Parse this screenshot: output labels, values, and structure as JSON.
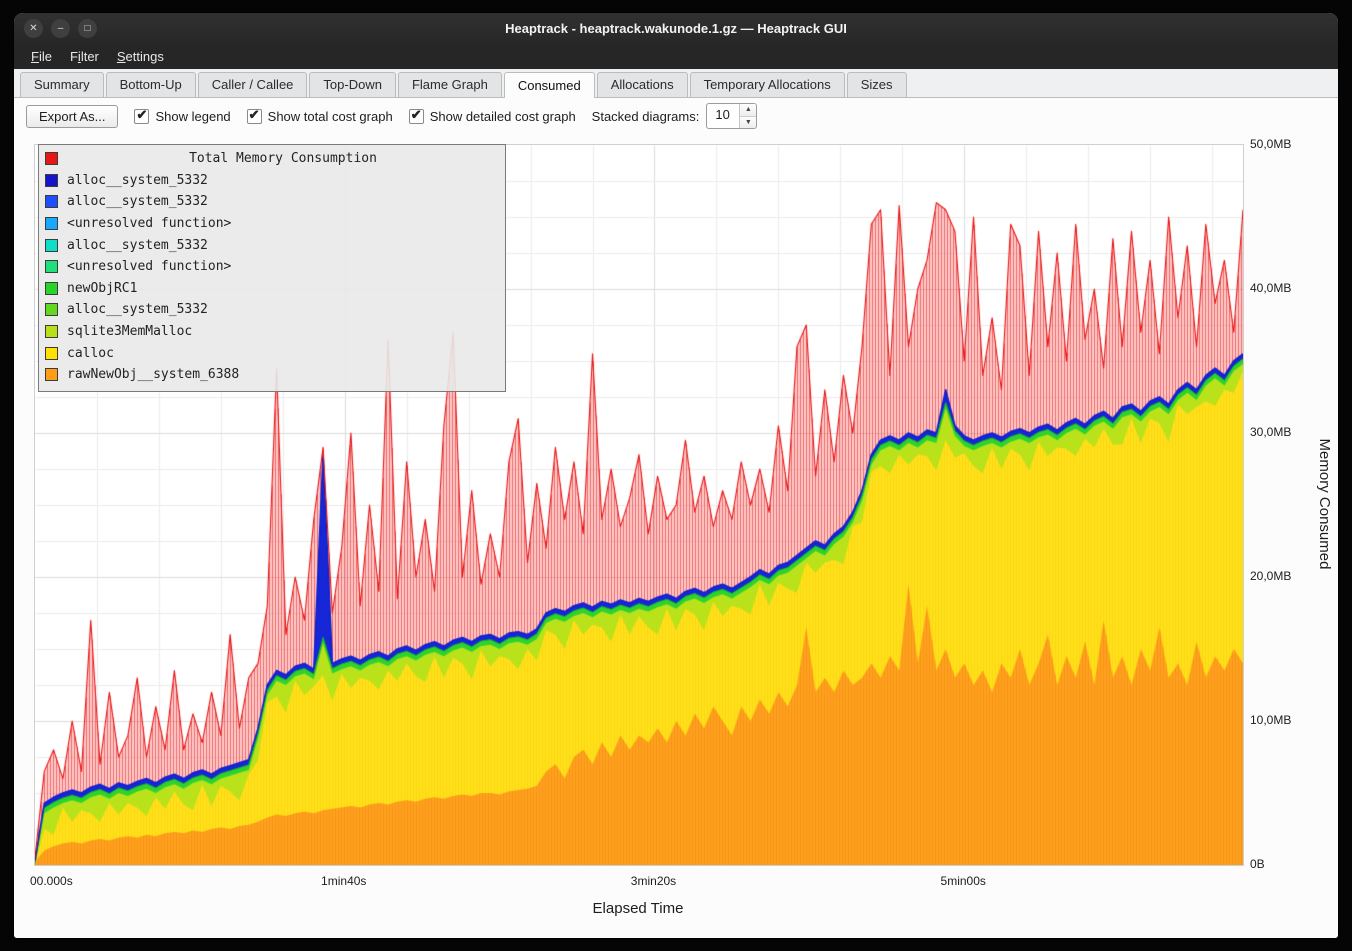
{
  "window": {
    "title": "Heaptrack - heaptrack.wakunode.1.gz — Heaptrack GUI",
    "controls": [
      {
        "name": "close",
        "glyph": "✕"
      },
      {
        "name": "minimize",
        "glyph": "–"
      },
      {
        "name": "maximize",
        "glyph": "□"
      }
    ]
  },
  "menu": {
    "items": [
      {
        "label": "File",
        "accel": 0
      },
      {
        "label": "Filter",
        "accel": 1
      },
      {
        "label": "Settings",
        "accel": 0
      }
    ]
  },
  "tabs": {
    "active_index": 5,
    "items": [
      "Summary",
      "Bottom-Up",
      "Caller / Callee",
      "Top-Down",
      "Flame Graph",
      "Consumed",
      "Allocations",
      "Temporary Allocations",
      "Sizes"
    ]
  },
  "toolbar": {
    "export_label": "Export As...",
    "checkboxes": [
      {
        "label": "Show legend",
        "checked": true
      },
      {
        "label": "Show total cost graph",
        "checked": true
      },
      {
        "label": "Show detailed cost graph",
        "checked": true
      }
    ],
    "stacked_label": "Stacked diagrams:",
    "stacked_value": "10"
  },
  "legend": {
    "title": "Total Memory Consumption",
    "title_color": "#e81717",
    "items": [
      {
        "label": "alloc__system_5332",
        "color": "#1414cc"
      },
      {
        "label": "alloc__system_5332",
        "color": "#1e4fff"
      },
      {
        "label": "<unresolved function>",
        "color": "#18a8ff"
      },
      {
        "label": "alloc__system_5332",
        "color": "#10dfc8"
      },
      {
        "label": "<unresolved function>",
        "color": "#1fe07a"
      },
      {
        "label": "newObjRC1",
        "color": "#28d428"
      },
      {
        "label": "alloc__system_5332",
        "color": "#63d81e"
      },
      {
        "label": "sqlite3MemMalloc",
        "color": "#b8e018"
      },
      {
        "label": "calloc",
        "color": "#ffe000"
      },
      {
        "label": "rawNewObj__system_6388",
        "color": "#ff9e16"
      }
    ]
  },
  "chart_data": {
    "type": "area",
    "stacked": true,
    "title": "Total Memory Consumption",
    "xlabel": "Elapsed Time",
    "ylabel": "Memory Consumed",
    "x_start_s": 0,
    "x_step_s": 3,
    "x_end_s": 390,
    "ylim_mb": [
      0,
      50
    ],
    "x_ticks": [
      {
        "t": 0,
        "label": "00.000s"
      },
      {
        "t": 100,
        "label": "1min40s"
      },
      {
        "t": 200,
        "label": "3min20s"
      },
      {
        "t": 300,
        "label": "5min00s"
      }
    ],
    "y_ticks": [
      {
        "mb": 0,
        "label": "0B"
      },
      {
        "mb": 10,
        "label": "10,0MB"
      },
      {
        "mb": 20,
        "label": "20,0MB"
      },
      {
        "mb": 30,
        "label": "30,0MB"
      },
      {
        "mb": 40,
        "label": "40,0MB"
      },
      {
        "mb": 50,
        "label": "50,0MB"
      }
    ],
    "grid": {
      "x_step_s": 20,
      "y_step_mb": 2.5,
      "minor_color": "#ececec",
      "major_color": "#dcdcdc"
    },
    "colors": {
      "total_fill": "rgba(255,70,70,0.28)",
      "total_hatch": "rgba(226,26,26,0.55)",
      "total_line": "#e81414",
      "blue": "#1627d8",
      "blue_line": "#1322cc",
      "green": "#2ed32e",
      "green_line": "#1db81d",
      "sqlite": "#b9e21b",
      "yellow": "#ffe01a",
      "yellow_hatch": "rgba(230,185,0,0.22)",
      "orange": "#ffa11e",
      "orange_hatch": "rgba(228,124,8,0.35)"
    },
    "derived_bands": {
      "green_offset_below_blue": 0.35,
      "sqlite_offset_below_blue": 0.7,
      "green_cap_above_yellow": 2.6,
      "sqlite_cap_above_yellow": 2.2
    },
    "series": {
      "total_top_mb": [
        0.5,
        6.5,
        8.0,
        6.0,
        10.0,
        6.5,
        17.0,
        7.0,
        12.0,
        7.5,
        9.0,
        13.0,
        7.5,
        11.0,
        8.0,
        13.5,
        8.0,
        10.5,
        8.5,
        12.0,
        9.0,
        16.0,
        9.5,
        13.0,
        14.0,
        18.0,
        34.5,
        16.0,
        20.0,
        17.0,
        24.0,
        29.0,
        17.5,
        22.0,
        30.0,
        18.0,
        25.0,
        19.0,
        36.5,
        18.5,
        28.0,
        20.0,
        24.0,
        19.0,
        30.5,
        37.0,
        20.0,
        26.0,
        19.5,
        23.0,
        20.0,
        28.0,
        31.0,
        21.0,
        26.5,
        22.0,
        29.0,
        24.0,
        28.0,
        23.0,
        35.5,
        24.0,
        27.5,
        23.5,
        25.5,
        28.5,
        23.0,
        27.0,
        24.0,
        25.0,
        29.5,
        24.5,
        27.0,
        23.5,
        26.0,
        24.0,
        28.0,
        25.0,
        27.5,
        24.5,
        30.5,
        26.0,
        36.0,
        37.5,
        27.0,
        33.0,
        28.0,
        34.0,
        30.0,
        36.0,
        44.5,
        45.5,
        34.0,
        45.8,
        36.0,
        40.0,
        42.0,
        46.0,
        45.5,
        44.0,
        35.0,
        45.0,
        34.0,
        38.0,
        33.0,
        44.5,
        43.0,
        34.0,
        44.0,
        36.0,
        42.5,
        35.0,
        44.5,
        36.5,
        40.0,
        34.5,
        43.5,
        36.0,
        44.0,
        37.0,
        42.0,
        35.5,
        45.0,
        38.0,
        43.0,
        36.0,
        44.5,
        39.0,
        42.0,
        37.0,
        45.5
      ],
      "blue_top_mb": [
        0.3,
        4.3,
        4.7,
        5.0,
        5.2,
        5.0,
        5.4,
        5.6,
        5.3,
        5.7,
        5.5,
        5.8,
        6.0,
        5.7,
        6.1,
        6.3,
        6.0,
        6.4,
        6.6,
        6.3,
        6.7,
        6.9,
        7.1,
        7.3,
        9.5,
        12.5,
        13.5,
        13.2,
        13.8,
        14.0,
        13.6,
        28.5,
        14.0,
        14.3,
        14.5,
        14.2,
        14.6,
        14.8,
        14.5,
        15.0,
        15.2,
        14.9,
        15.3,
        15.5,
        15.2,
        15.6,
        15.8,
        15.5,
        15.9,
        16.0,
        15.7,
        16.1,
        16.2,
        16.0,
        16.4,
        17.5,
        17.8,
        17.6,
        18.0,
        18.2,
        17.9,
        18.3,
        18.1,
        18.4,
        18.2,
        18.5,
        18.3,
        18.6,
        18.8,
        18.5,
        19.0,
        19.2,
        18.9,
        19.3,
        19.5,
        19.2,
        19.6,
        20.0,
        20.5,
        20.2,
        20.8,
        21.0,
        21.5,
        22.0,
        22.5,
        22.2,
        23.0,
        23.5,
        24.5,
        26.0,
        28.5,
        29.5,
        29.8,
        29.5,
        30.0,
        29.7,
        30.2,
        30.0,
        33.0,
        30.5,
        29.8,
        29.5,
        29.8,
        30.0,
        29.7,
        30.1,
        30.3,
        30.0,
        30.4,
        30.6,
        30.2,
        30.7,
        31.0,
        30.6,
        31.2,
        31.5,
        31.0,
        31.8,
        32.0,
        31.5,
        32.2,
        32.5,
        32.0,
        33.0,
        33.5,
        33.0,
        34.0,
        34.5,
        34.0,
        35.0,
        35.5
      ],
      "yellow_top_mb": [
        0.1,
        2.5,
        2.1,
        4.0,
        3.0,
        3.8,
        3.6,
        3.0,
        4.3,
        3.5,
        4.3,
        4.0,
        3.4,
        4.7,
        3.9,
        5.1,
        4.2,
        3.8,
        5.6,
        4.1,
        5.5,
        5.1,
        4.5,
        6.3,
        7.3,
        11.3,
        11.7,
        10.6,
        12.8,
        11.8,
        12.4,
        13.2,
        11.4,
        13.3,
        12.3,
        13.0,
        12.8,
        12.2,
        13.5,
        12.8,
        14.0,
        13.1,
        12.7,
        14.5,
        13.0,
        14.4,
        14.0,
        12.9,
        14.9,
        13.8,
        14.5,
        14.3,
        13.6,
        15.0,
        14.2,
        16.3,
        16.0,
        15.0,
        17.0,
        16.0,
        16.7,
        16.5,
        15.5,
        17.4,
        16.0,
        17.3,
        16.5,
        16.0,
        17.8,
        16.3,
        17.8,
        17.4,
        16.3,
        18.3,
        17.3,
        18.0,
        17.8,
        17.4,
        19.5,
        18.0,
        19.6,
        19.2,
        18.9,
        21.0,
        20.3,
        21.0,
        21.2,
        20.9,
        23.5,
        23.8,
        27.3,
        27.7,
        27.2,
        28.5,
        27.8,
        28.5,
        28.4,
        27.4,
        29.5,
        28.3,
        28.6,
        27.7,
        27.2,
        29.0,
        27.5,
        28.9,
        28.5,
        27.4,
        29.4,
        28.4,
        29.0,
        28.9,
        28.4,
        29.6,
        29.0,
        30.3,
        29.2,
        29.2,
        31.0,
        29.3,
        31.0,
        30.7,
        29.4,
        32.0,
        31.3,
        31.8,
        32.2,
        31.9,
        33.0,
        32.8,
        34.3
      ],
      "orange_top_mb": [
        0.2,
        1.0,
        1.3,
        1.5,
        1.6,
        1.5,
        1.7,
        1.8,
        1.7,
        1.9,
        2.0,
        1.9,
        2.1,
        2.0,
        2.2,
        2.3,
        2.2,
        2.4,
        2.3,
        2.5,
        2.6,
        2.5,
        2.7,
        2.8,
        3.0,
        3.3,
        3.5,
        3.4,
        3.6,
        3.7,
        3.6,
        3.8,
        3.9,
        4.0,
        4.1,
        4.0,
        4.2,
        4.3,
        4.2,
        4.4,
        4.5,
        4.4,
        4.6,
        4.7,
        4.6,
        4.8,
        4.9,
        4.8,
        5.0,
        5.0,
        4.9,
        5.1,
        5.2,
        5.3,
        5.5,
        6.5,
        7.0,
        6.0,
        7.5,
        8.0,
        7.0,
        8.5,
        7.5,
        9.0,
        8.0,
        9.0,
        8.5,
        9.5,
        8.5,
        10.0,
        9.0,
        10.5,
        9.5,
        11.0,
        10.0,
        9.0,
        11.0,
        10.0,
        11.5,
        10.5,
        12.0,
        11.0,
        12.5,
        16.5,
        12.0,
        13.0,
        12.0,
        13.5,
        12.5,
        13.0,
        14.0,
        13.0,
        14.5,
        13.5,
        19.5,
        14.0,
        18.0,
        13.5,
        15.0,
        13.0,
        14.0,
        12.5,
        13.5,
        12.0,
        14.0,
        13.0,
        15.0,
        12.5,
        14.0,
        16.0,
        12.5,
        14.5,
        13.0,
        15.5,
        12.5,
        17.0,
        13.0,
        14.5,
        12.5,
        15.0,
        13.5,
        16.5,
        13.0,
        14.0,
        12.5,
        15.5,
        13.0,
        14.5,
        13.5,
        15.0,
        14.0
      ]
    }
  }
}
